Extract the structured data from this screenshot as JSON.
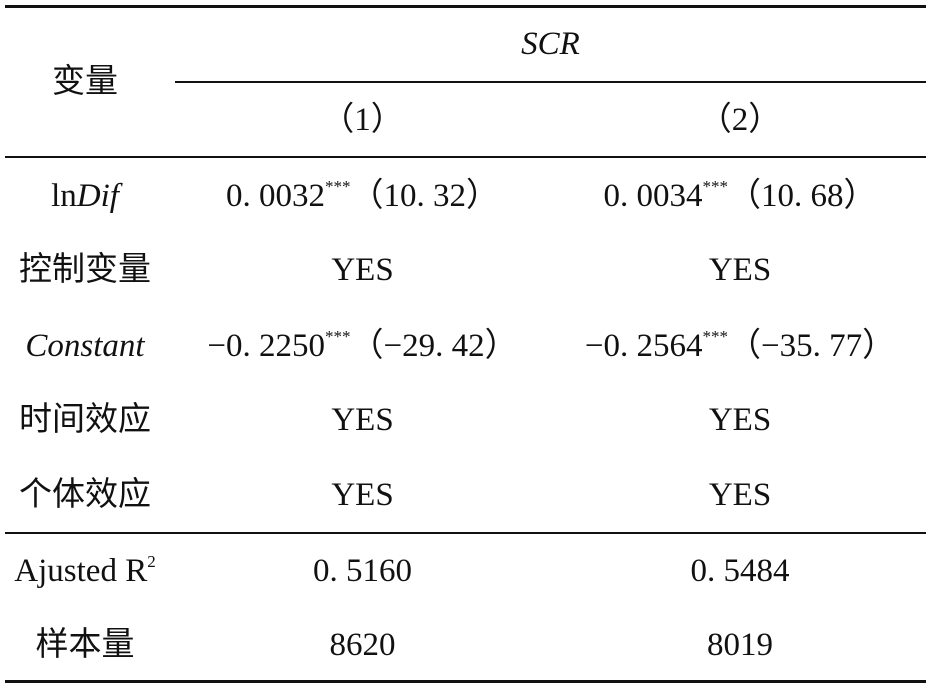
{
  "header": {
    "variable": "变量",
    "group": "SCR",
    "columns": [
      "（1）",
      "（2）"
    ]
  },
  "rows": [
    {
      "label": [
        "ln",
        "Dif"
      ],
      "cells": [
        {
          "coef": "0. 0032",
          "stars": "***",
          "t": "（10. 32）"
        },
        {
          "coef": "0. 0034",
          "stars": "***",
          "t": "（10. 68）"
        }
      ]
    },
    {
      "label": [
        "控制变量"
      ],
      "cells": [
        "YES",
        "YES"
      ]
    },
    {
      "label": [
        "Constant"
      ],
      "cells": [
        {
          "coef": "−0. 2250",
          "stars": "***",
          "t": "（−29. 42）"
        },
        {
          "coef": "−0. 2564",
          "stars": "***",
          "t": "（−35. 77）"
        }
      ]
    },
    {
      "label": [
        "时间效应"
      ],
      "cells": [
        "YES",
        "YES"
      ]
    },
    {
      "label": [
        "个体效应"
      ],
      "cells": [
        "YES",
        "YES"
      ]
    },
    {
      "label": [
        "Ajusted R",
        "2"
      ],
      "cells": [
        "0. 5160",
        "0. 5484"
      ]
    },
    {
      "label": [
        "样本量"
      ],
      "cells": [
        "8620",
        "8019"
      ]
    }
  ]
}
